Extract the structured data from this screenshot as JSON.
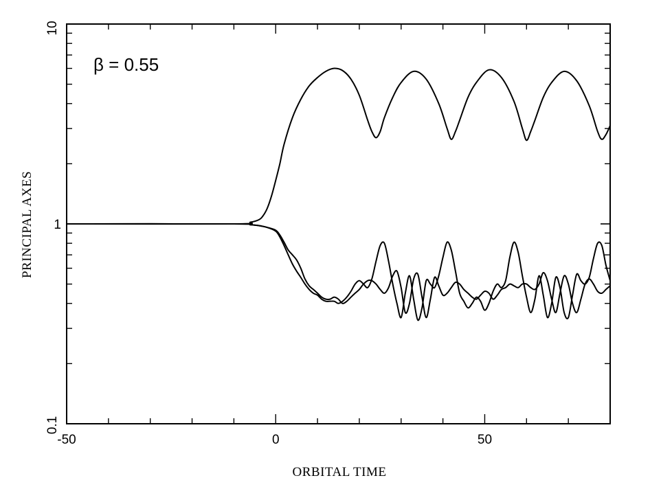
{
  "chart_data": {
    "type": "line",
    "title": "",
    "xlabel": "ORBITAL TIME",
    "ylabel": "PRINCIPAL AXES",
    "xlim": [
      -50,
      80
    ],
    "ylim": [
      0.1,
      10
    ],
    "yscale": "log",
    "grid": false,
    "legend": "none",
    "annotation": "β = 0.55",
    "x_ticks": [
      {
        "value": -50,
        "label": "-50"
      },
      {
        "value": 0,
        "label": "0"
      },
      {
        "value": 50,
        "label": "50"
      }
    ],
    "y_ticks": [
      {
        "value": 0.1,
        "label": "0.1"
      },
      {
        "value": 1,
        "label": "1"
      },
      {
        "value": 10,
        "label": "10"
      }
    ],
    "series": [
      {
        "x": [
          -50,
          -10,
          -6,
          -4,
          -3,
          -2,
          -1,
          0,
          1,
          2,
          4,
          6,
          8,
          10,
          12,
          14,
          16,
          18,
          20,
          22,
          23,
          24,
          25,
          26,
          28,
          30,
          33,
          36,
          39,
          41,
          42,
          43,
          44,
          46,
          48,
          51,
          54,
          57,
          59,
          60,
          61,
          62,
          64,
          66,
          69,
          72,
          75,
          77,
          78,
          79,
          80
        ],
        "y": [
          1.0,
          1.0,
          1.02,
          1.05,
          1.1,
          1.2,
          1.38,
          1.65,
          2.0,
          2.5,
          3.4,
          4.2,
          4.9,
          5.4,
          5.8,
          6.0,
          5.85,
          5.3,
          4.4,
          3.3,
          2.9,
          2.7,
          2.9,
          3.4,
          4.3,
          5.1,
          5.8,
          5.3,
          4.0,
          3.0,
          2.65,
          2.9,
          3.3,
          4.3,
          5.1,
          5.9,
          5.4,
          4.1,
          3.0,
          2.62,
          2.9,
          3.3,
          4.3,
          5.1,
          5.8,
          5.2,
          3.9,
          2.9,
          2.65,
          2.8,
          3.1
        ]
      },
      {
        "x": [
          -50,
          -10,
          -6,
          -4,
          -2,
          0,
          1,
          2,
          3,
          4,
          5,
          6,
          7,
          8,
          9,
          10,
          11,
          12,
          13,
          14,
          15,
          16,
          17,
          18,
          19,
          20,
          21,
          22,
          23,
          24,
          25,
          26,
          27,
          28,
          29,
          30,
          31,
          32,
          33,
          34,
          35,
          36,
          37,
          38,
          39,
          40,
          41,
          42,
          43,
          44,
          45,
          46,
          47,
          48,
          49,
          50,
          51,
          52,
          53,
          54,
          55,
          56,
          57,
          58,
          59,
          60,
          61,
          62,
          63,
          64,
          65,
          66,
          67,
          68,
          69,
          70,
          71,
          72,
          73,
          74,
          75,
          76,
          77,
          78,
          79,
          80
        ],
        "y": [
          1.0,
          1.0,
          0.99,
          0.98,
          0.96,
          0.92,
          0.86,
          0.78,
          0.7,
          0.63,
          0.58,
          0.54,
          0.5,
          0.47,
          0.45,
          0.44,
          0.42,
          0.41,
          0.41,
          0.41,
          0.4,
          0.41,
          0.43,
          0.46,
          0.5,
          0.52,
          0.5,
          0.48,
          0.53,
          0.65,
          0.78,
          0.8,
          0.65,
          0.5,
          0.4,
          0.34,
          0.45,
          0.55,
          0.42,
          0.33,
          0.38,
          0.52,
          0.5,
          0.48,
          0.55,
          0.68,
          0.81,
          0.74,
          0.58,
          0.45,
          0.41,
          0.38,
          0.4,
          0.43,
          0.41,
          0.37,
          0.4,
          0.46,
          0.5,
          0.48,
          0.52,
          0.68,
          0.81,
          0.72,
          0.55,
          0.43,
          0.36,
          0.42,
          0.55,
          0.44,
          0.34,
          0.4,
          0.54,
          0.48,
          0.36,
          0.34,
          0.44,
          0.56,
          0.52,
          0.5,
          0.54,
          0.67,
          0.8,
          0.78,
          0.62,
          0.52
        ]
      },
      {
        "x": [
          -50,
          -10,
          -6,
          -4,
          -2,
          0,
          1,
          2,
          3,
          4,
          5,
          6,
          7,
          8,
          9,
          10,
          11,
          12,
          13,
          14,
          15,
          16,
          17,
          18,
          19,
          20,
          21,
          22,
          23,
          24,
          25,
          26,
          27,
          28,
          29,
          30,
          31,
          32,
          33,
          34,
          35,
          36,
          37,
          38,
          39,
          40,
          41,
          42,
          43,
          44,
          45,
          46,
          47,
          48,
          49,
          50,
          51,
          52,
          53,
          54,
          55,
          56,
          57,
          58,
          59,
          60,
          61,
          62,
          63,
          64,
          65,
          66,
          67,
          68,
          69,
          70,
          71,
          72,
          73,
          74,
          75,
          76,
          77,
          78,
          79,
          80
        ],
        "y": [
          1.0,
          1.0,
          0.99,
          0.98,
          0.96,
          0.93,
          0.88,
          0.81,
          0.74,
          0.7,
          0.66,
          0.6,
          0.53,
          0.49,
          0.47,
          0.45,
          0.43,
          0.42,
          0.42,
          0.43,
          0.42,
          0.4,
          0.41,
          0.43,
          0.45,
          0.47,
          0.5,
          0.52,
          0.52,
          0.5,
          0.47,
          0.45,
          0.48,
          0.55,
          0.58,
          0.48,
          0.36,
          0.4,
          0.53,
          0.56,
          0.43,
          0.34,
          0.42,
          0.54,
          0.49,
          0.44,
          0.45,
          0.48,
          0.51,
          0.5,
          0.47,
          0.45,
          0.43,
          0.42,
          0.44,
          0.46,
          0.45,
          0.42,
          0.44,
          0.47,
          0.48,
          0.5,
          0.49,
          0.48,
          0.5,
          0.5,
          0.48,
          0.47,
          0.5,
          0.57,
          0.52,
          0.42,
          0.36,
          0.45,
          0.55,
          0.5,
          0.4,
          0.36,
          0.42,
          0.5,
          0.53,
          0.5,
          0.46,
          0.45,
          0.47,
          0.49
        ]
      }
    ]
  }
}
